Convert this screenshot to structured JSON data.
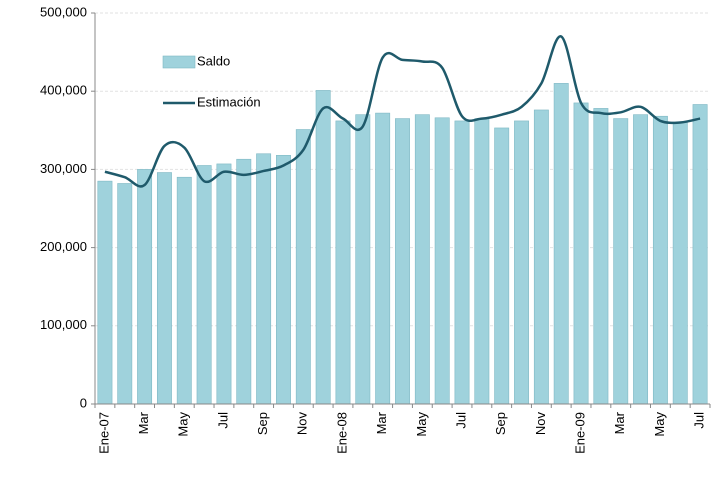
{
  "chart_data": {
    "type": "bar_line",
    "categories": [
      "Ene-07",
      null,
      "Mar",
      null,
      "May",
      null,
      "Jul",
      null,
      "Sep",
      null,
      "Nov",
      null,
      "Ene-08",
      null,
      "Mar",
      null,
      "May",
      null,
      "Jul",
      null,
      "Sep",
      null,
      "Nov",
      null,
      "Ene-09",
      null,
      "Mar",
      null,
      "May",
      null,
      "Jul"
    ],
    "series": [
      {
        "name": "Saldo",
        "type": "bar",
        "color": "#9fd2dc",
        "values": [
          285000,
          282000,
          300000,
          296000,
          290000,
          305000,
          307000,
          313000,
          320000,
          318000,
          351000,
          401000,
          362000,
          370000,
          372000,
          365000,
          370000,
          366000,
          362000,
          365000,
          353000,
          362000,
          376000,
          410000,
          385000,
          378000,
          365000,
          370000,
          368000,
          360000,
          383000
        ]
      },
      {
        "name": "Estimación",
        "type": "line",
        "color": "#1f5a6b",
        "values": [
          297000,
          290000,
          280000,
          330000,
          328000,
          285000,
          297000,
          293000,
          298000,
          305000,
          325000,
          378000,
          365000,
          355000,
          443000,
          440000,
          438000,
          430000,
          368000,
          365000,
          370000,
          380000,
          410000,
          470000,
          385000,
          372000,
          373000,
          380000,
          362000,
          360000,
          365000
        ]
      }
    ],
    "ylim": [
      0,
      500000
    ],
    "yticks": [
      0,
      {
        "value": 100000,
        "label": "100,000"
      },
      {
        "value": 200000,
        "label": "200,000"
      },
      {
        "value": 300000,
        "label": "300,000"
      },
      {
        "value": 400000,
        "label": "400,000"
      },
      {
        "value": 500000,
        "label": "500,000"
      }
    ],
    "grid": true,
    "legend": "upper left"
  }
}
